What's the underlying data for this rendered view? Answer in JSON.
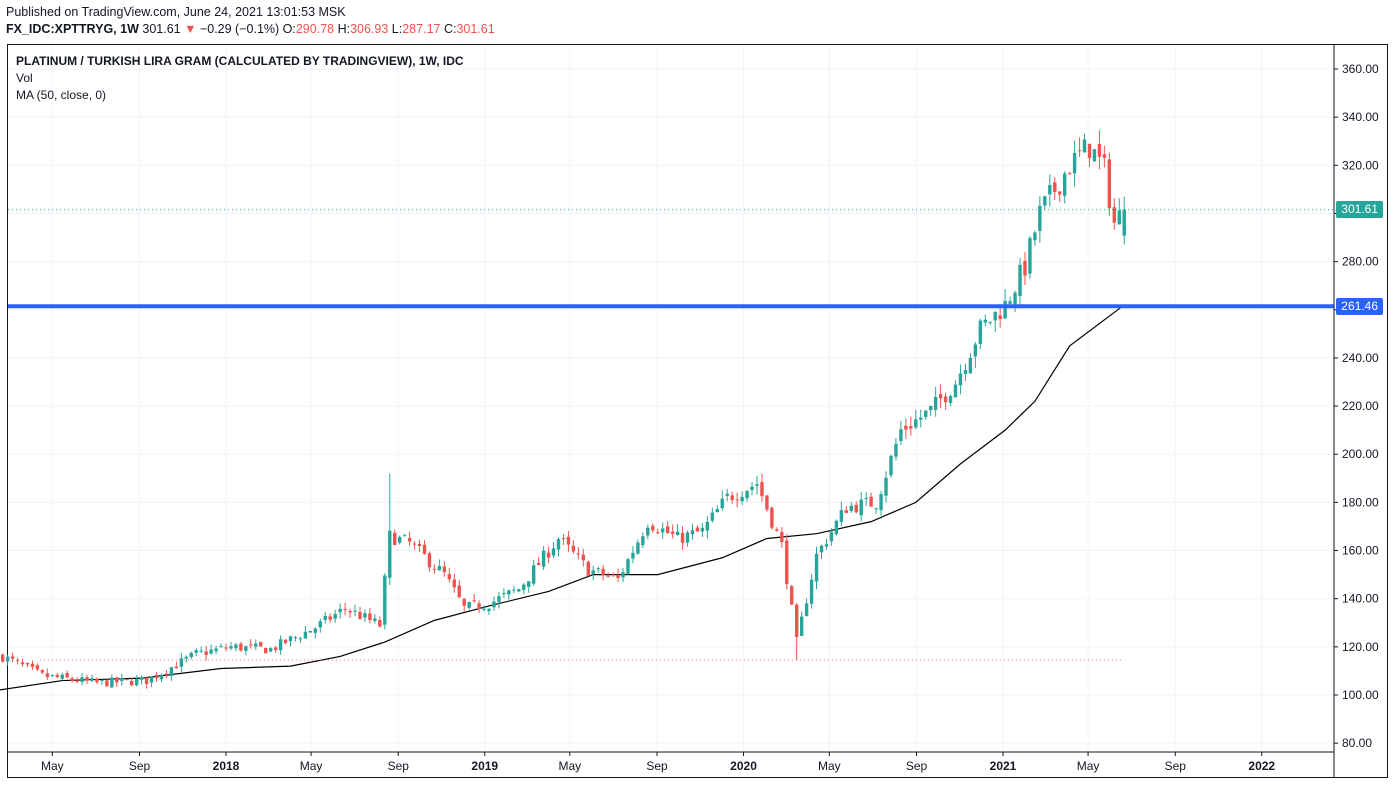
{
  "header": {
    "published": "Published on TradingView.com, June 24, 2021 13:01:53 MSK",
    "symbol": "FX_IDC:XPTTRYG, 1W",
    "last": "301.61",
    "arrow": "▼",
    "change": "−0.29 (−0.1%)",
    "o_label": "O:",
    "o_value": "290.78",
    "h_label": "H:",
    "h_value": "306.93",
    "l_label": "L:",
    "l_value": "287.17",
    "c_label": "C:",
    "c_value": "301.61"
  },
  "legend": {
    "title": "PLATINUM / TURKISH LIRA GRAM (CALCULATED BY TRADINGVIEW), 1W, IDC",
    "vol": "Vol",
    "ma": "MA (50, close, 0)"
  },
  "price_tags": {
    "last": "301.61",
    "level": "261.46"
  },
  "colors": {
    "up": "#26a69a",
    "down": "#ef5350",
    "ma": "#000000",
    "level": "#2962ff",
    "grid": "#f0f3fa"
  },
  "chart_data": {
    "type": "candlestick",
    "title": "PLATINUM / TURKISH LIRA GRAM (CALCULATED BY TRADINGVIEW), 1W, IDC",
    "interval": "1W",
    "y_axis_ticks": [
      "360.00",
      "340.00",
      "320.00",
      "300.00",
      "280.00",
      "260.00",
      "240.00",
      "220.00",
      "200.00",
      "180.00",
      "160.00",
      "140.00",
      "120.00",
      "100.00",
      "80.00"
    ],
    "ylim": [
      76,
      364
    ],
    "x_axis_ticks": [
      "May",
      "Sep",
      "2018",
      "May",
      "Sep",
      "2019",
      "May",
      "Sep",
      "2020",
      "May",
      "Sep",
      "2021",
      "May",
      "Sep",
      "2022"
    ],
    "x_tick_dates": [
      "2017-05",
      "2017-09",
      "2018-01",
      "2018-05",
      "2018-09",
      "2019-01",
      "2019-05",
      "2019-09",
      "2020-01",
      "2020-05",
      "2020-09",
      "2021-01",
      "2021-05",
      "2021-09",
      "2022-01"
    ],
    "bold_ticks": [
      "2018",
      "2019",
      "2020",
      "2021",
      "2022"
    ],
    "close_anchors": [
      [
        "2017-02-20",
        116
      ],
      [
        "2017-04-17",
        108
      ],
      [
        "2017-07-03",
        105
      ],
      [
        "2017-09-11",
        106
      ],
      [
        "2017-11-20",
        117
      ],
      [
        "2018-01-08",
        120
      ],
      [
        "2018-03-05",
        119
      ],
      [
        "2018-05-07",
        128
      ],
      [
        "2018-06-18",
        136
      ],
      [
        "2018-08-06",
        129
      ],
      [
        "2018-08-20",
        166
      ],
      [
        "2018-09-17",
        163
      ],
      [
        "2018-11-05",
        150
      ],
      [
        "2018-12-03",
        136
      ],
      [
        "2019-01-07",
        138
      ],
      [
        "2019-02-18",
        144
      ],
      [
        "2019-04-15",
        165
      ],
      [
        "2019-05-27",
        152
      ],
      [
        "2019-07-08",
        148
      ],
      [
        "2019-08-19",
        172
      ],
      [
        "2019-09-30",
        165
      ],
      [
        "2019-11-04",
        168
      ],
      [
        "2019-12-09",
        182
      ],
      [
        "2020-01-20",
        188
      ],
      [
        "2020-02-24",
        162
      ],
      [
        "2020-03-16",
        122
      ],
      [
        "2020-04-13",
        158
      ],
      [
        "2020-05-25",
        178
      ],
      [
        "2020-07-06",
        180
      ],
      [
        "2020-08-10",
        210
      ],
      [
        "2020-09-21",
        218
      ],
      [
        "2020-10-26",
        230
      ],
      [
        "2020-11-30",
        252
      ],
      [
        "2021-01-04",
        262
      ],
      [
        "2021-02-01",
        278
      ],
      [
        "2021-02-22",
        300
      ],
      [
        "2021-04-05",
        320
      ],
      [
        "2021-05-03",
        328
      ],
      [
        "2021-05-24",
        318
      ],
      [
        "2021-06-07",
        296
      ],
      [
        "2021-06-21",
        301.61
      ]
    ],
    "last_candle": {
      "date": "2021-06-21",
      "open": 290.78,
      "high": 306.93,
      "low": 287.17,
      "close": 301.61
    },
    "horizontal_level": 261.46,
    "low_marker": 114.5,
    "moving_average": {
      "name": "MA (50, close, 0)",
      "points": [
        [
          "2017-02-13",
          102
        ],
        [
          "2017-05-15",
          106
        ],
        [
          "2017-09-04",
          107
        ],
        [
          "2017-12-25",
          111
        ],
        [
          "2018-04-02",
          112
        ],
        [
          "2018-06-11",
          116
        ],
        [
          "2018-08-13",
          122
        ],
        [
          "2018-10-22",
          131
        ],
        [
          "2019-01-07",
          137
        ],
        [
          "2019-04-01",
          143
        ],
        [
          "2019-06-03",
          150
        ],
        [
          "2019-09-02",
          150
        ],
        [
          "2019-12-02",
          157
        ],
        [
          "2020-02-03",
          165
        ],
        [
          "2020-04-13",
          167
        ],
        [
          "2020-06-29",
          172
        ],
        [
          "2020-08-31",
          180
        ],
        [
          "2020-11-02",
          196
        ],
        [
          "2021-01-04",
          210
        ],
        [
          "2021-02-15",
          222
        ],
        [
          "2021-04-05",
          245
        ],
        [
          "2021-06-21",
          262
        ]
      ]
    }
  }
}
